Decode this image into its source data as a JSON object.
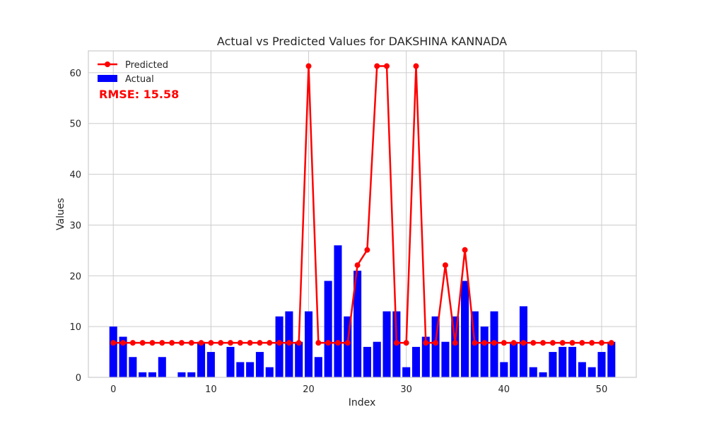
{
  "chart_data": {
    "type": "bar",
    "title": "Actual vs Predicted Values for DAKSHINA KANNADA",
    "xlabel": "Index",
    "ylabel": "Values",
    "xlim": [
      -2.55,
      53.55
    ],
    "ylim": [
      0,
      64.3
    ],
    "xticks": [
      0,
      10,
      20,
      30,
      40,
      50
    ],
    "yticks": [
      0,
      10,
      20,
      30,
      40,
      50,
      60
    ],
    "grid": true,
    "legend_position": "top-left",
    "annotation": "RMSE: 15.58",
    "colors": {
      "actual": "#0000ff",
      "predicted": "#ff0000",
      "annotation": "#ff0000",
      "grid": "#cccccc",
      "frame": "#cccccc"
    },
    "x": [
      0,
      1,
      2,
      3,
      4,
      5,
      6,
      7,
      8,
      9,
      10,
      11,
      12,
      13,
      14,
      15,
      16,
      17,
      18,
      19,
      20,
      21,
      22,
      23,
      24,
      25,
      26,
      27,
      28,
      29,
      30,
      31,
      32,
      33,
      34,
      35,
      36,
      37,
      38,
      39,
      40,
      41,
      42,
      43,
      44,
      45,
      46,
      47,
      48,
      49,
      50,
      51
    ],
    "series": [
      {
        "name": "Actual",
        "kind": "bar",
        "values": [
          10,
          8,
          4,
          1,
          1,
          4,
          0,
          1,
          1,
          7,
          5,
          0,
          6,
          3,
          3,
          5,
          2,
          12,
          13,
          7,
          13,
          4,
          19,
          26,
          12,
          21,
          6,
          7,
          13,
          13,
          2,
          6,
          8,
          12,
          7,
          12,
          19,
          13,
          10,
          13,
          3,
          7,
          14,
          2,
          1,
          5,
          6,
          6,
          3,
          2,
          5,
          7
        ]
      },
      {
        "name": "Predicted",
        "kind": "line",
        "values": [
          6.8,
          6.8,
          6.8,
          6.8,
          6.8,
          6.8,
          6.8,
          6.8,
          6.8,
          6.8,
          6.8,
          6.8,
          6.8,
          6.8,
          6.8,
          6.8,
          6.8,
          6.8,
          6.8,
          6.8,
          61.3,
          6.8,
          6.8,
          6.8,
          6.8,
          22.1,
          25.1,
          61.3,
          61.3,
          6.8,
          6.8,
          61.3,
          6.8,
          6.8,
          22.1,
          6.8,
          25.1,
          6.8,
          6.8,
          6.8,
          6.8,
          6.8,
          6.8,
          6.8,
          6.8,
          6.8,
          6.8,
          6.8,
          6.8,
          6.8,
          6.8,
          6.8
        ]
      }
    ]
  }
}
